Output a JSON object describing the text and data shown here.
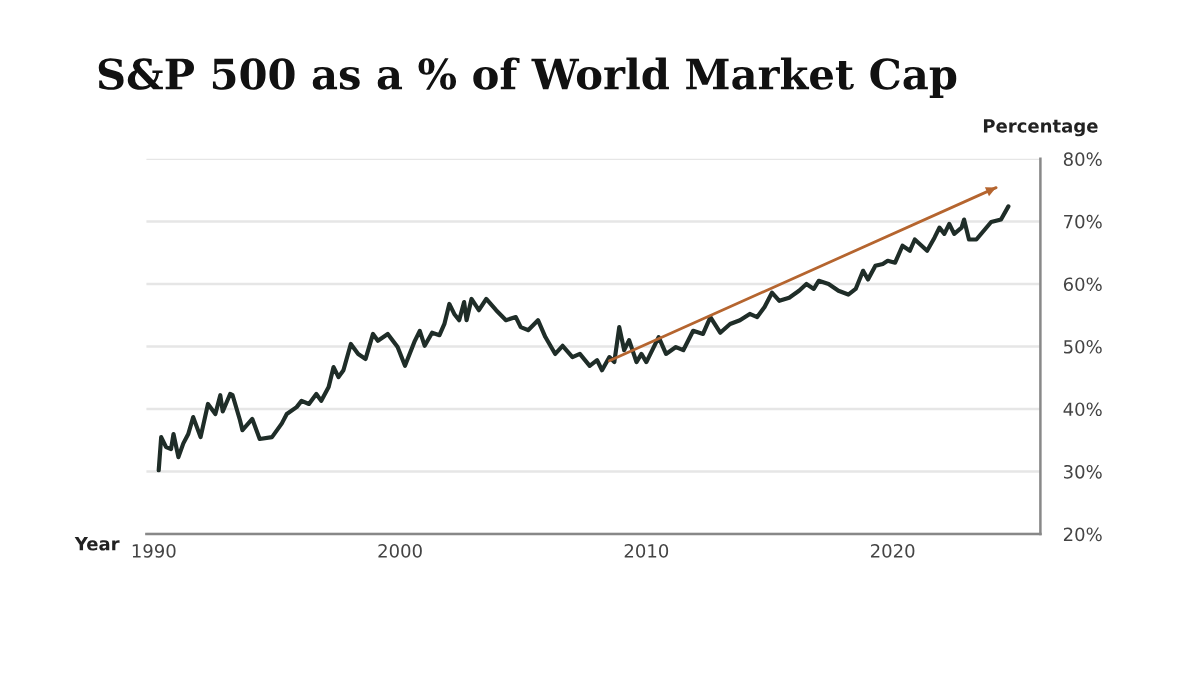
{
  "chart_data": {
    "type": "line",
    "title": "S&P 500 as a % of World Market Cap",
    "xlabel": "Year",
    "ylabel": "Percentage",
    "xlim": [
      1989.7,
      2026
    ],
    "xticks": [
      1990,
      2000,
      2010,
      2020
    ],
    "ylim": [
      20,
      80
    ],
    "yticks": [
      {
        "value": 20,
        "label": "20%"
      },
      {
        "value": 30,
        "label": "30%"
      },
      {
        "value": 40,
        "label": "40%"
      },
      {
        "value": 50,
        "label": "50%"
      },
      {
        "value": 60,
        "label": "60%"
      },
      {
        "value": 70,
        "label": "70%"
      },
      {
        "value": 80,
        "label": "80%"
      }
    ],
    "grid": "y",
    "legend": false,
    "series": [
      {
        "color": "#1f2d28",
        "x": [
          1990.2,
          1990.3,
          1990.5,
          1990.7,
          1990.8,
          1991.0,
          1991.2,
          1991.4,
          1991.6,
          1991.9,
          1992.2,
          1992.5,
          1992.7,
          1992.8,
          1993.1,
          1993.2,
          1993.5,
          1993.6,
          1994.0,
          1994.3,
          1994.8,
          1995.2,
          1995.4,
          1995.8,
          1996.0,
          1996.3,
          1996.6,
          1996.8,
          1997.1,
          1997.3,
          1997.5,
          1997.7,
          1998.0,
          1998.3,
          1998.6,
          1998.9,
          1999.1,
          1999.5,
          1999.9,
          2000.2,
          2000.6,
          2000.8,
          2001.0,
          2001.3,
          2001.6,
          2001.8,
          2002.0,
          2002.2,
          2002.4,
          2002.6,
          2002.7,
          2002.9,
          2003.2,
          2003.5,
          2003.9,
          2004.3,
          2004.7,
          2004.9,
          2005.2,
          2005.6,
          2005.9,
          2006.3,
          2006.6,
          2007.0,
          2007.3,
          2007.7,
          2008.0,
          2008.2,
          2008.5,
          2008.7,
          2008.9,
          2009.1,
          2009.3,
          2009.6,
          2009.8,
          2010.0,
          2010.5,
          2010.8,
          2011.2,
          2011.5,
          2011.9,
          2012.3,
          2012.6,
          2013.0,
          2013.4,
          2013.8,
          2014.2,
          2014.5,
          2014.8,
          2015.1,
          2015.4,
          2015.8,
          2016.2,
          2016.5,
          2016.8,
          2017.0,
          2017.4,
          2017.8,
          2018.2,
          2018.5,
          2018.8,
          2019.0,
          2019.3,
          2019.6,
          2019.8,
          2020.1,
          2020.4,
          2020.7,
          2020.9,
          2021.4,
          2021.7,
          2021.9,
          2022.1,
          2022.3,
          2022.5,
          2022.8,
          2022.9,
          2023.1,
          2023.4,
          2023.7,
          2024.0,
          2024.4,
          2024.7
        ],
        "values": [
          30.2,
          35.5,
          33.9,
          33.6,
          36.0,
          32.3,
          34.5,
          36.0,
          38.7,
          35.5,
          40.8,
          39.2,
          42.2,
          39.6,
          42.4,
          42.2,
          38.2,
          36.6,
          38.4,
          35.2,
          35.5,
          37.7,
          39.2,
          40.3,
          41.3,
          40.8,
          42.4,
          41.3,
          43.5,
          46.7,
          45.1,
          46.2,
          50.4,
          48.8,
          48.0,
          52.0,
          50.9,
          52.0,
          49.9,
          46.9,
          50.9,
          52.5,
          50.1,
          52.2,
          51.8,
          53.6,
          56.8,
          55.2,
          54.2,
          57.1,
          54.2,
          57.6,
          55.8,
          57.6,
          55.8,
          54.2,
          54.7,
          53.1,
          52.6,
          54.2,
          51.5,
          48.8,
          50.1,
          48.3,
          48.8,
          46.9,
          47.8,
          46.2,
          48.3,
          47.5,
          53.1,
          49.4,
          51.0,
          47.5,
          48.8,
          47.5,
          51.5,
          48.8,
          49.9,
          49.4,
          52.5,
          52.0,
          54.7,
          52.2,
          53.6,
          54.2,
          55.2,
          54.7,
          56.3,
          58.6,
          57.3,
          57.8,
          58.9,
          60.0,
          59.2,
          60.5,
          60.0,
          58.9,
          58.3,
          59.2,
          62.1,
          60.7,
          62.9,
          63.2,
          63.7,
          63.4,
          66.1,
          65.3,
          67.1,
          65.3,
          67.4,
          69.0,
          68.0,
          69.6,
          68.0,
          69.0,
          70.3,
          67.1,
          67.1,
          68.5,
          69.9,
          70.3,
          72.4
        ]
      },
      {
        "type": "line",
        "color": "#b5652f",
        "x": [
          2008.5,
          2024.2
        ],
        "values": [
          47.7,
          75.4
        ]
      }
    ]
  }
}
